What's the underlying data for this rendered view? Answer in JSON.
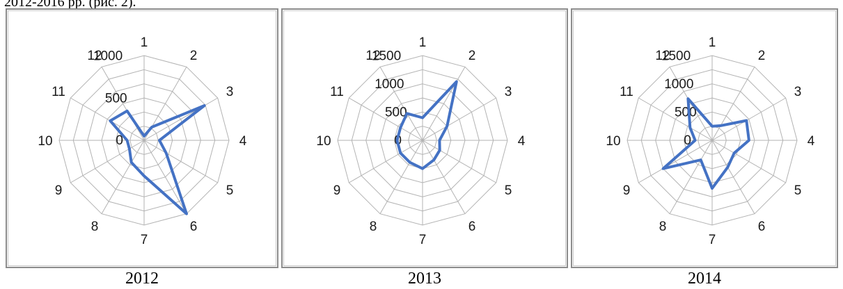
{
  "caption": "2012-2016 pp. (рис. 2).",
  "chart_data": [
    {
      "type": "radar",
      "title": "2012",
      "categories": [
        "1",
        "2",
        "3",
        "4",
        "5",
        "6",
        "7",
        "8",
        "9",
        "10",
        "11",
        "12"
      ],
      "rmax": 1000,
      "rticks": [
        0,
        500,
        1000
      ],
      "grid_rings": 6,
      "grid": true,
      "series": [
        {
          "values": [
            50,
            180,
            820,
            180,
            300,
            1000,
            420,
            300,
            200,
            200,
            460,
            400
          ],
          "color": "#4472c4"
        }
      ]
    },
    {
      "type": "radar",
      "title": "2013",
      "categories": [
        "1",
        "2",
        "3",
        "4",
        "5",
        "6",
        "7",
        "8",
        "9",
        "10",
        "11",
        "12"
      ],
      "rmax": 1500,
      "rticks": [
        0,
        500,
        1000,
        1500
      ],
      "grid_rings": 6,
      "grid": true,
      "series": [
        {
          "values": [
            400,
            1200,
            500,
            300,
            350,
            400,
            500,
            450,
            450,
            450,
            450,
            550
          ],
          "color": "#4472c4"
        }
      ]
    },
    {
      "type": "radar",
      "title": "2014",
      "categories": [
        "1",
        "2",
        "3",
        "4",
        "5",
        "6",
        "7",
        "8",
        "9",
        "10",
        "11",
        "12"
      ],
      "rmax": 1500,
      "rticks": [
        0,
        500,
        1000,
        1500
      ],
      "grid_rings": 6,
      "grid": true,
      "series": [
        {
          "values": [
            250,
            300,
            700,
            650,
            450,
            550,
            850,
            400,
            1000,
            300,
            450,
            850
          ],
          "color": "#4472c4"
        }
      ]
    }
  ]
}
